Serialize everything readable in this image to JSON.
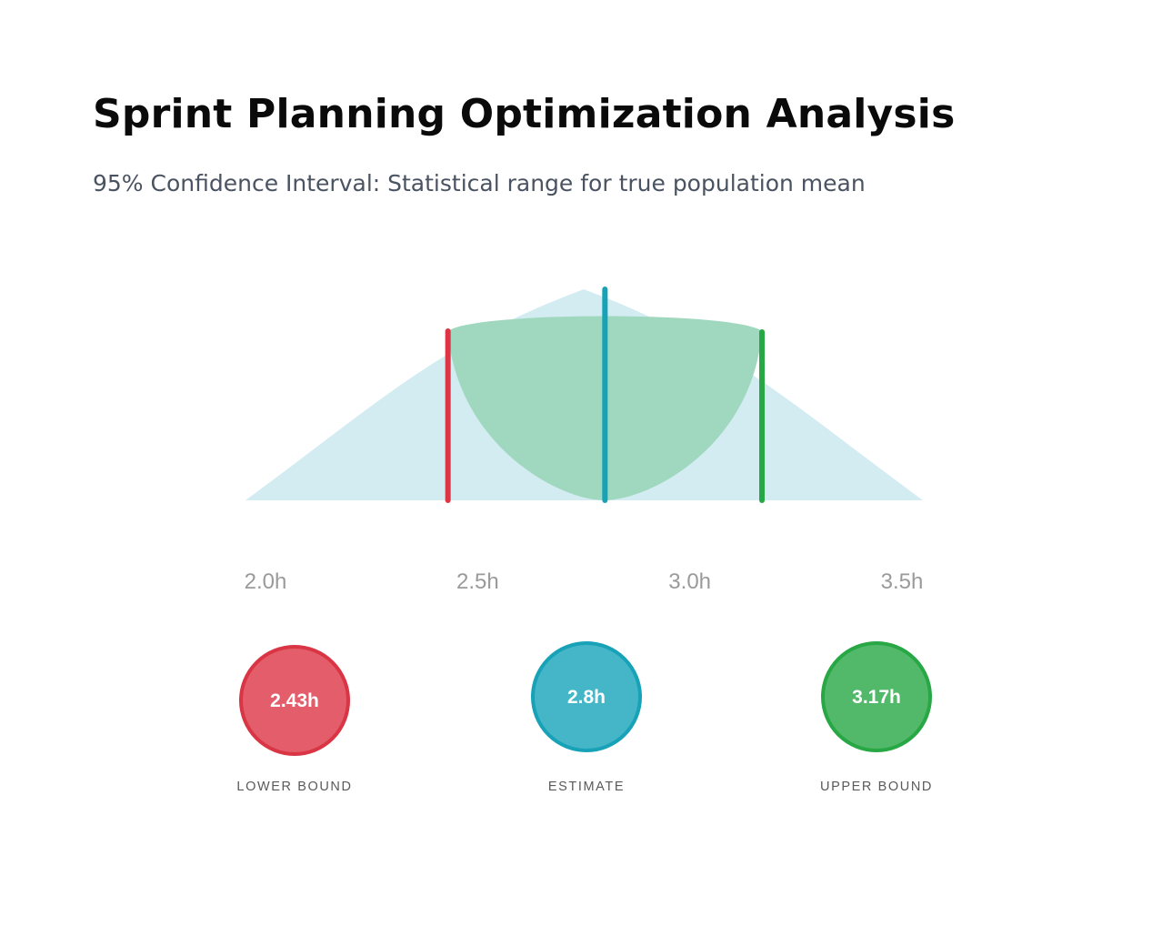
{
  "header": {
    "title": "Sprint Planning Optimization Analysis",
    "subtitle": "95% Confidence Interval: Statistical range for true population mean"
  },
  "chart_data": {
    "type": "area",
    "x_ticks": [
      {
        "value": 2.0,
        "label": "2.0h"
      },
      {
        "value": 2.5,
        "label": "2.5h"
      },
      {
        "value": 3.0,
        "label": "3.0h"
      },
      {
        "value": 3.5,
        "label": "3.5h"
      }
    ],
    "xlim": [
      2.0,
      3.5
    ],
    "distribution_peak": 2.75,
    "interval": {
      "lower": 2.43,
      "estimate": 2.8,
      "upper": 3.17
    },
    "markers": [
      {
        "key": "lower",
        "value_label": "2.43h",
        "label": "LOWER BOUND",
        "color": "#e35d6a",
        "border": "#d93545"
      },
      {
        "key": "estimate",
        "value_label": "2.8h",
        "label": "ESTIMATE",
        "color": "#44b6c7",
        "border": "#17a2b8"
      },
      {
        "key": "upper",
        "value_label": "3.17h",
        "label": "UPPER BOUND",
        "color": "#52b96b",
        "border": "#28a745"
      }
    ],
    "colors": {
      "distribution": "#d3ecf1",
      "interval_fill": "#a0d8bf",
      "lower_line": "#dc3545",
      "estimate_line": "#17a2b8",
      "upper_line": "#28a745"
    }
  }
}
